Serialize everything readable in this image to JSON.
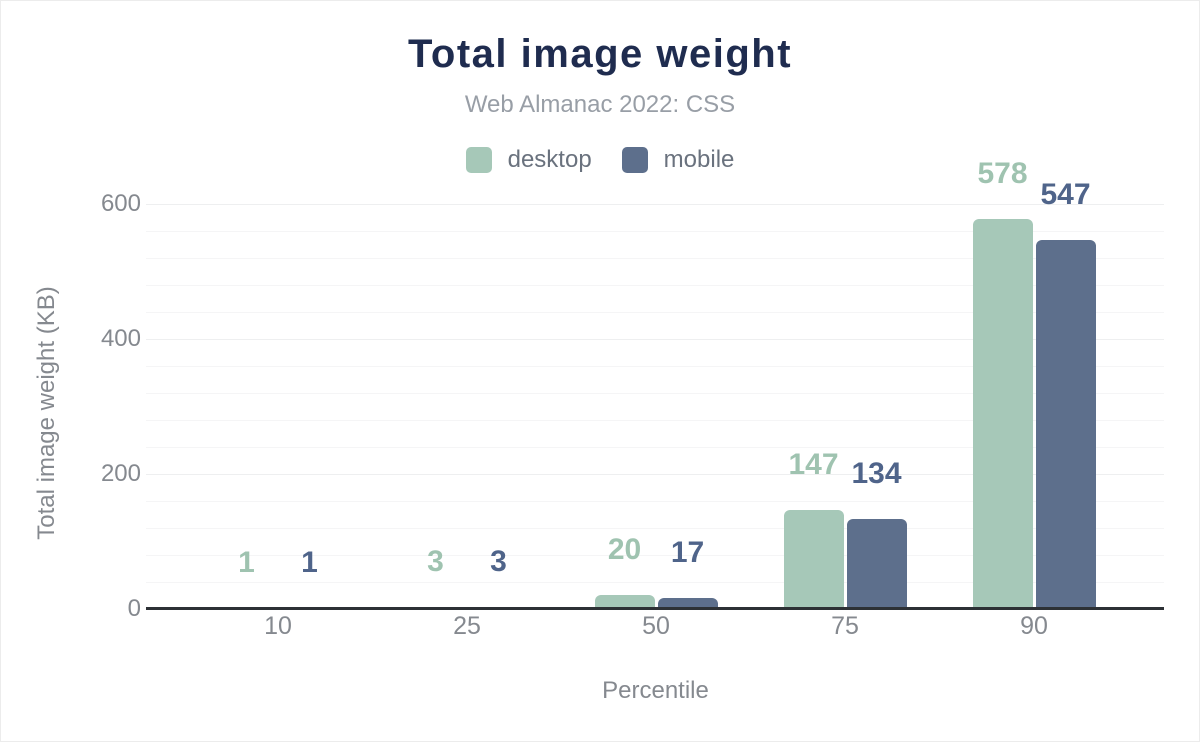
{
  "chart_data": {
    "type": "bar",
    "title": "Total image weight",
    "subtitle": "Web Almanac 2022: CSS",
    "xlabel": "Percentile",
    "ylabel": "Total image weight (KB)",
    "categories": [
      "10",
      "25",
      "50",
      "75",
      "90"
    ],
    "series": [
      {
        "name": "desktop",
        "color": "#a6c8b8",
        "label_color": "#9fc3b0",
        "values": [
          1,
          3,
          20,
          147,
          578
        ]
      },
      {
        "name": "mobile",
        "color": "#5d6f8c",
        "label_color": "#4f648a",
        "values": [
          1,
          3,
          17,
          134,
          547
        ]
      }
    ],
    "ylim": [
      0,
      600
    ],
    "yticks": [
      0,
      200,
      400,
      600
    ],
    "grid_step": 40,
    "grid": "on",
    "legend_position": "top",
    "value_labels": "above-bars",
    "colors": {
      "title": "#1f2c4f",
      "subtitle": "#989ea6",
      "legend_text": "#6a727e",
      "axis_text": "#85898f",
      "grid_minor": "#f5f5f6",
      "grid_major": "#eeeff0",
      "baseline": "#2d3135",
      "background": "#ffffff"
    }
  }
}
